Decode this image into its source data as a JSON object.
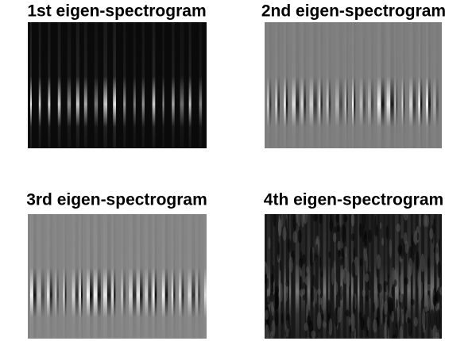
{
  "panels": [
    {
      "title": "1st eigen-spectrogram"
    },
    {
      "title": "2nd eigen-spectrogram"
    },
    {
      "title": "3rd eigen-spectrogram"
    },
    {
      "title": "4th eigen-spectrogram"
    }
  ]
}
